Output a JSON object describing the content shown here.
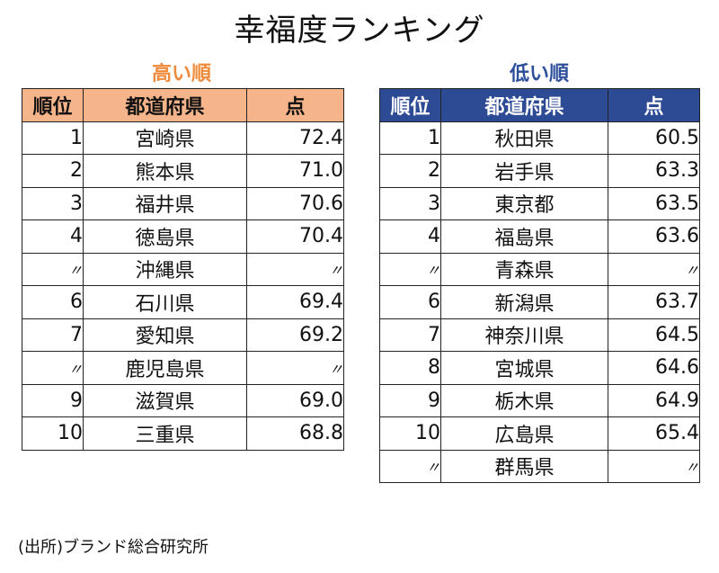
{
  "title": "幸福度ランキング",
  "high": {
    "subtitle": "高い順",
    "headers": [
      "順位",
      "都道府県",
      "点"
    ],
    "rows": [
      {
        "rank": "1",
        "pref": "宮崎県",
        "score": "72.4"
      },
      {
        "rank": "2",
        "pref": "熊本県",
        "score": "71.0"
      },
      {
        "rank": "3",
        "pref": "福井県",
        "score": "70.6"
      },
      {
        "rank": "4",
        "pref": "徳島県",
        "score": "70.4"
      },
      {
        "rank": "〃",
        "pref": "沖縄県",
        "score": "〃"
      },
      {
        "rank": "6",
        "pref": "石川県",
        "score": "69.4"
      },
      {
        "rank": "7",
        "pref": "愛知県",
        "score": "69.2"
      },
      {
        "rank": "〃",
        "pref": "鹿児島県",
        "score": "〃"
      },
      {
        "rank": "9",
        "pref": "滋賀県",
        "score": "69.0"
      },
      {
        "rank": "10",
        "pref": "三重県",
        "score": "68.8"
      }
    ],
    "header_color": "#f6b48a",
    "subtitle_color": "#ee8a3a"
  },
  "low": {
    "subtitle": "低い順",
    "headers": [
      "順位",
      "都道府県",
      "点"
    ],
    "rows": [
      {
        "rank": "1",
        "pref": "秋田県",
        "score": "60.5"
      },
      {
        "rank": "2",
        "pref": "岩手県",
        "score": "63.3"
      },
      {
        "rank": "3",
        "pref": "東京都",
        "score": "63.5"
      },
      {
        "rank": "4",
        "pref": "福島県",
        "score": "63.6"
      },
      {
        "rank": "〃",
        "pref": "青森県",
        "score": "〃"
      },
      {
        "rank": "6",
        "pref": "新潟県",
        "score": "63.7"
      },
      {
        "rank": "7",
        "pref": "神奈川県",
        "score": "64.5"
      },
      {
        "rank": "8",
        "pref": "宮城県",
        "score": "64.6"
      },
      {
        "rank": "9",
        "pref": "栃木県",
        "score": "64.9"
      },
      {
        "rank": "10",
        "pref": "広島県",
        "score": "65.4"
      },
      {
        "rank": "〃",
        "pref": "群馬県",
        "score": "〃"
      }
    ],
    "header_color": "#2d4a94",
    "subtitle_color": "#2e4f9c"
  },
  "source": "(出所)ブランド総合研究所"
}
